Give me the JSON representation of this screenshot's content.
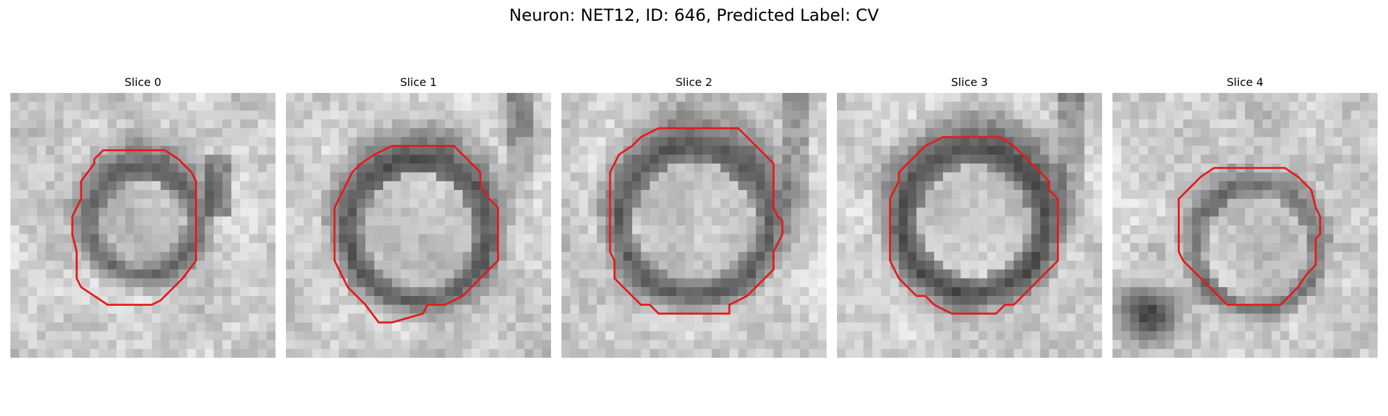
{
  "figure": {
    "title": "Neuron: NET12, ID: 646, Predicted Label: CV"
  },
  "colors": {
    "contour": "#e41a1c"
  },
  "panels": [
    {
      "title": "Slice 0"
    },
    {
      "title": "Slice 1"
    },
    {
      "title": "Slice 2"
    },
    {
      "title": "Slice 3"
    },
    {
      "title": "Slice 4"
    }
  ]
}
